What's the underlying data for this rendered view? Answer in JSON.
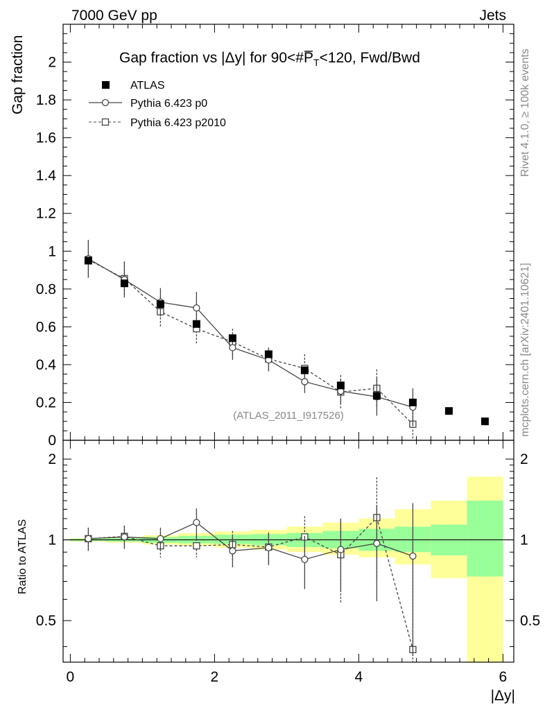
{
  "header": {
    "left": "7000 GeV pp",
    "right": "Jets"
  },
  "side_labels": {
    "rivet": "Rivet 4.1.0, ≥ 100k events",
    "mcplots": "mcplots.cern.ch [arXiv:2401.10621]"
  },
  "chart_data": [
    {
      "type": "scatter",
      "title_prefix": "Gap fraction vs |Δy| for 90<#",
      "title_pt": "P",
      "title_sub": "T",
      "title_suffix": "<120, Fwd/Bwd",
      "ylabel": "Gap fraction",
      "xlabel": "|Δy|",
      "xlim": [
        -0.1,
        6.15
      ],
      "ylim": [
        0,
        2.2
      ],
      "yticks": [
        0,
        0.2,
        0.4,
        0.6,
        0.8,
        1,
        1.2,
        1.4,
        1.6,
        1.8,
        2
      ],
      "ytick_labels": [
        "0",
        "0.2",
        "0.4",
        "0.6",
        "0.8",
        "1",
        "1.2",
        "1.4",
        "1.6",
        "1.8",
        "2"
      ],
      "watermark": "(ATLAS_2011_I917526)",
      "legend": [
        "ATLAS",
        "Pythia 6.423 p0",
        "Pythia 6.423 p2010"
      ],
      "x": [
        0.25,
        0.75,
        1.25,
        1.75,
        2.25,
        2.75,
        3.25,
        3.75,
        4.25,
        4.75,
        5.25,
        5.75
      ],
      "series": [
        {
          "name": "ATLAS",
          "marker": "filled-square",
          "values": [
            0.95,
            0.83,
            0.72,
            0.615,
            0.54,
            0.455,
            0.37,
            0.29,
            0.235,
            0.2,
            0.155,
            0.1
          ]
        },
        {
          "name": "Pythia 6.423 p0",
          "marker": "open-circle",
          "line": "solid",
          "values": [
            0.96,
            0.85,
            0.73,
            0.7,
            0.49,
            0.425,
            0.31,
            0.26,
            0.23,
            0.175
          ],
          "errors": [
            0.1,
            0.095,
            0.075,
            0.085,
            0.065,
            0.06,
            0.06,
            0.065,
            0.1,
            0.1
          ]
        },
        {
          "name": "Pythia 6.423 p2010",
          "marker": "open-square",
          "line": "dashed",
          "values": [
            0.955,
            0.855,
            0.68,
            0.59,
            0.52,
            0.43,
            0.38,
            0.255,
            0.275,
            0.085
          ],
          "errors": [
            0.1,
            0.09,
            0.08,
            0.08,
            0.07,
            0.06,
            0.075,
            0.09,
            0.1,
            0.1
          ]
        }
      ]
    },
    {
      "type": "scatter",
      "ylabel": "Ratio to ATLAS",
      "xlabel": "|Δy|",
      "xlim": [
        -0.1,
        6.15
      ],
      "ylim": [
        0.35,
        2.35
      ],
      "yticks": [
        0.5,
        1,
        2
      ],
      "ytick_labels": [
        "0.5",
        "1",
        "2"
      ],
      "xticks": [
        0,
        2,
        4,
        6
      ],
      "xtick_labels": [
        "0",
        "2",
        "4",
        "6"
      ],
      "x": [
        0.25,
        0.75,
        1.25,
        1.75,
        2.25,
        2.75,
        3.25,
        3.75,
        4.25,
        4.75
      ],
      "bands": {
        "edges": [
          0,
          0.5,
          1,
          1.5,
          2,
          2.5,
          3,
          3.5,
          4,
          4.5,
          5,
          5.5,
          6
        ],
        "green_lo": [
          0.99,
          0.985,
          0.975,
          0.97,
          0.965,
          0.955,
          0.94,
          0.93,
          0.91,
          0.9,
          0.875,
          0.73
        ],
        "green_hi": [
          1.01,
          1.015,
          1.025,
          1.035,
          1.045,
          1.05,
          1.06,
          1.08,
          1.1,
          1.12,
          1.14,
          1.4
        ],
        "yellow_lo": [
          0.985,
          0.975,
          0.96,
          0.95,
          0.935,
          0.92,
          0.9,
          0.88,
          0.86,
          0.81,
          0.72,
          0.35
        ],
        "yellow_hi": [
          1.015,
          1.025,
          1.04,
          1.06,
          1.075,
          1.09,
          1.12,
          1.16,
          1.2,
          1.3,
          1.4,
          1.72
        ]
      },
      "series": [
        {
          "name": "Pythia 6.423 p0",
          "marker": "open-circle",
          "line": "solid",
          "values": [
            1.01,
            1.025,
            1.01,
            1.16,
            0.91,
            0.935,
            0.845,
            0.92,
            0.97,
            0.87
          ],
          "errors": [
            0.1,
            0.1,
            0.1,
            0.15,
            0.12,
            0.13,
            0.19,
            0.28,
            0.38,
            0.5
          ]
        },
        {
          "name": "Pythia 6.423 p2010",
          "marker": "open-square",
          "line": "dashed",
          "values": [
            1.01,
            1.03,
            0.95,
            0.95,
            0.96,
            0.94,
            1.025,
            0.88,
            1.21,
            0.39
          ],
          "errors": [
            0.1,
            0.1,
            0.09,
            0.09,
            0.12,
            0.12,
            0.2,
            0.3,
            0.5,
            0.5
          ]
        }
      ]
    }
  ]
}
